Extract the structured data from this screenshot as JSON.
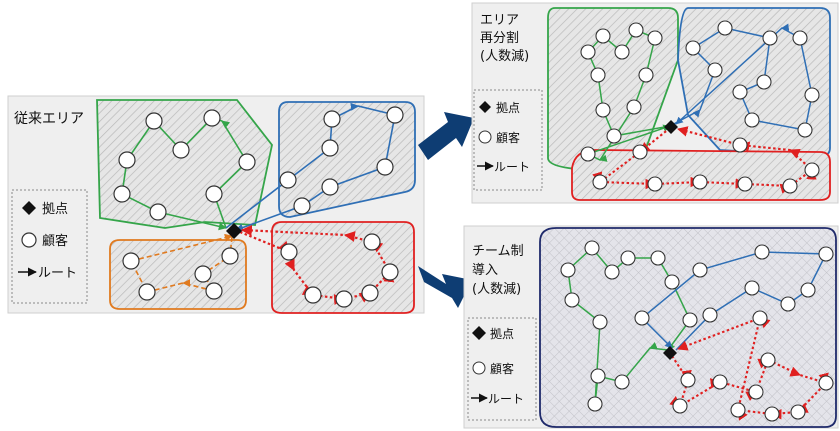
{
  "panels": {
    "original": {
      "title": "従来エリア"
    },
    "repartition": {
      "title_lines": [
        "エリア",
        "再分割",
        "(人数減)"
      ]
    },
    "team": {
      "title_lines": [
        "チーム制",
        "導入",
        "(人数減)"
      ]
    }
  },
  "legend": {
    "depot": "拠点",
    "customer": "顧客",
    "route": "ルート"
  },
  "colors": {
    "green": "#35a54a",
    "blue": "#2f6fb5",
    "red": "#e02020",
    "orange": "#e07a1f",
    "navy": "#1f2a6b",
    "arrow_fill": "#0e3d73",
    "panel_bg": "#efefef",
    "hatch": "#b9b9b9"
  },
  "icons": {
    "depot": "black-diamond",
    "customer": "white-circle",
    "route": "arrow-right",
    "transition": "blue-arrow"
  }
}
